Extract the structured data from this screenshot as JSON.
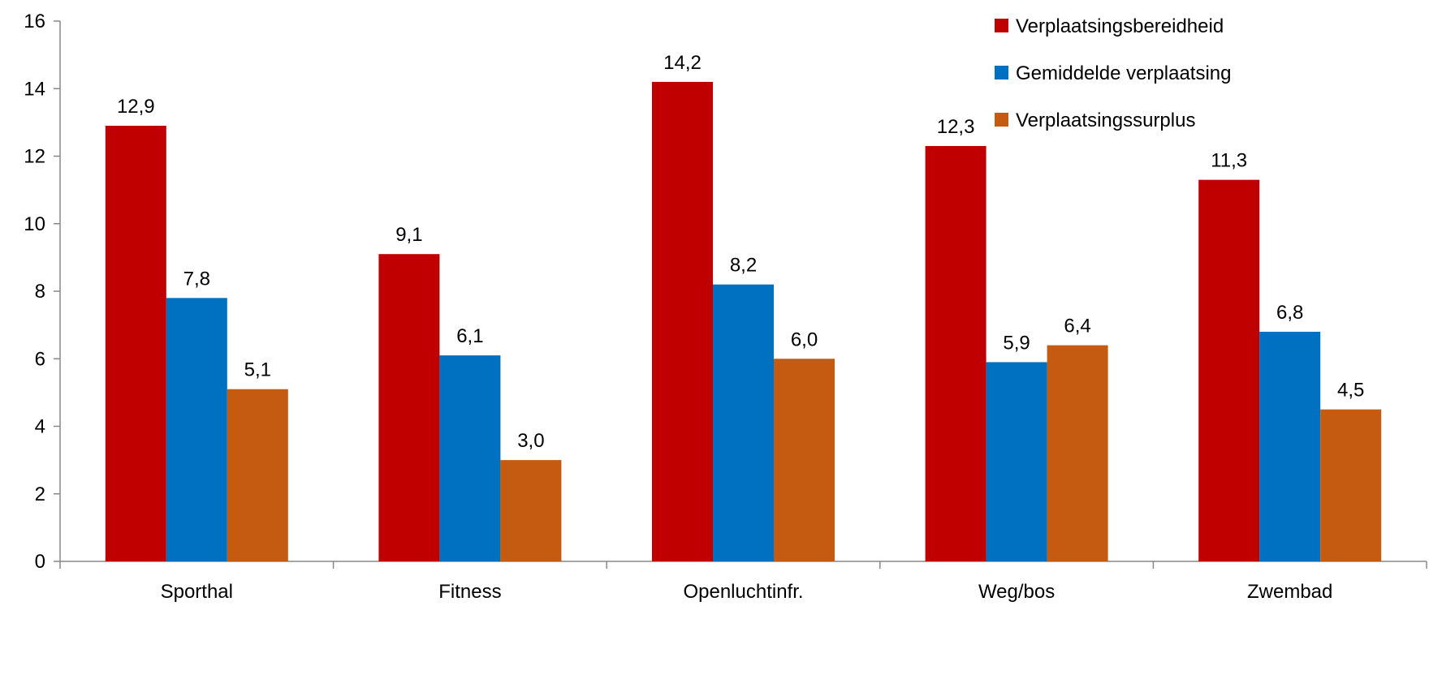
{
  "chart_data": {
    "type": "bar",
    "categories": [
      "Sporthal",
      "Fitness",
      "Openluchtinfr.",
      "Weg/bos",
      "Zwembad"
    ],
    "series": [
      {
        "name": "Verplaatsingsbereidheid",
        "color": "#C00000",
        "values": [
          12.9,
          9.1,
          14.2,
          12.3,
          11.3
        ],
        "labels": [
          "12,9",
          "9,1",
          "14,2",
          "12,3",
          "11,3"
        ]
      },
      {
        "name": "Gemiddelde verplaatsing",
        "color": "#0070C0",
        "values": [
          7.8,
          6.1,
          8.2,
          5.9,
          6.8
        ],
        "labels": [
          "7,8",
          "6,1",
          "8,2",
          "5,9",
          "6,8"
        ]
      },
      {
        "name": "Verplaatsingssurplus",
        "color": "#C55A11",
        "values": [
          5.1,
          3.0,
          6.0,
          6.4,
          4.5
        ],
        "labels": [
          "5,1",
          "3,0",
          "6,0",
          "6,4",
          "4,5"
        ]
      }
    ],
    "ylim": [
      0,
      16
    ],
    "yticks": [
      0,
      2,
      4,
      6,
      8,
      10,
      12,
      14,
      16
    ],
    "title": "",
    "xlabel": "",
    "ylabel": "",
    "grid": false,
    "legend_position": "top-right"
  }
}
